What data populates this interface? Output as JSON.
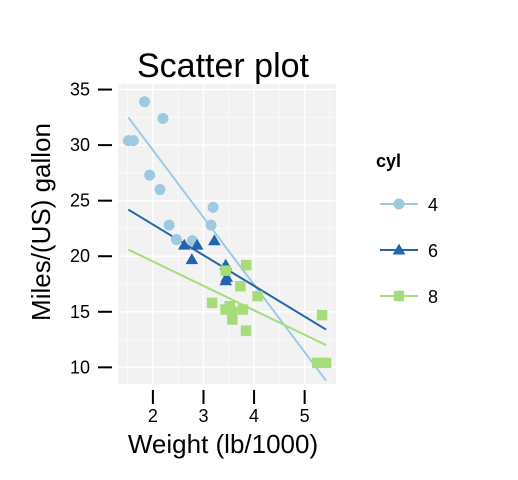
{
  "chart_data": {
    "type": "scatter",
    "title": "Scatter plot",
    "xlabel": "Weight (lb/1000)",
    "ylabel": "Miles/(US) gallon",
    "xlim": [
      1.31,
      5.62
    ],
    "ylim": [
      8.5,
      35.5
    ],
    "x_ticks": [
      2,
      3,
      4,
      5
    ],
    "y_ticks": [
      10,
      15,
      20,
      25,
      30,
      35
    ],
    "grid": true,
    "background": "#f2f2f2",
    "legend": {
      "title": "cyl",
      "position": "right"
    },
    "series": [
      {
        "name": "4",
        "marker": "circle",
        "color": "#9ecae1",
        "points": [
          [
            2.32,
            22.8
          ],
          [
            3.19,
            24.4
          ],
          [
            3.15,
            22.8
          ],
          [
            2.2,
            32.4
          ],
          [
            1.615,
            30.4
          ],
          [
            1.835,
            33.9
          ],
          [
            2.465,
            21.5
          ],
          [
            1.935,
            27.3
          ],
          [
            2.14,
            26.0
          ],
          [
            1.513,
            30.4
          ],
          [
            2.78,
            21.4
          ]
        ],
        "fit": [
          [
            1.513,
            32.5
          ],
          [
            5.424,
            8.8
          ]
        ]
      },
      {
        "name": "6",
        "marker": "triangle",
        "color": "#2166ac",
        "points": [
          [
            2.62,
            21.0
          ],
          [
            2.875,
            21.0
          ],
          [
            3.215,
            21.4
          ],
          [
            3.46,
            18.1
          ],
          [
            3.44,
            19.2
          ],
          [
            3.44,
            17.8
          ],
          [
            2.77,
            19.7
          ]
        ],
        "fit": [
          [
            1.513,
            24.2
          ],
          [
            5.424,
            13.4
          ]
        ]
      },
      {
        "name": "8",
        "marker": "square",
        "color": "#a6dc7a",
        "points": [
          [
            3.44,
            18.7
          ],
          [
            3.57,
            14.3
          ],
          [
            4.07,
            16.4
          ],
          [
            3.73,
            17.3
          ],
          [
            3.78,
            15.2
          ],
          [
            5.25,
            10.4
          ],
          [
            5.424,
            10.4
          ],
          [
            5.345,
            14.7
          ],
          [
            3.52,
            15.5
          ],
          [
            3.435,
            15.2
          ],
          [
            3.84,
            13.3
          ],
          [
            3.845,
            19.2
          ],
          [
            3.17,
            15.8
          ],
          [
            3.57,
            15.0
          ]
        ],
        "fit": [
          [
            1.513,
            20.6
          ],
          [
            5.424,
            12.0
          ]
        ]
      }
    ]
  }
}
